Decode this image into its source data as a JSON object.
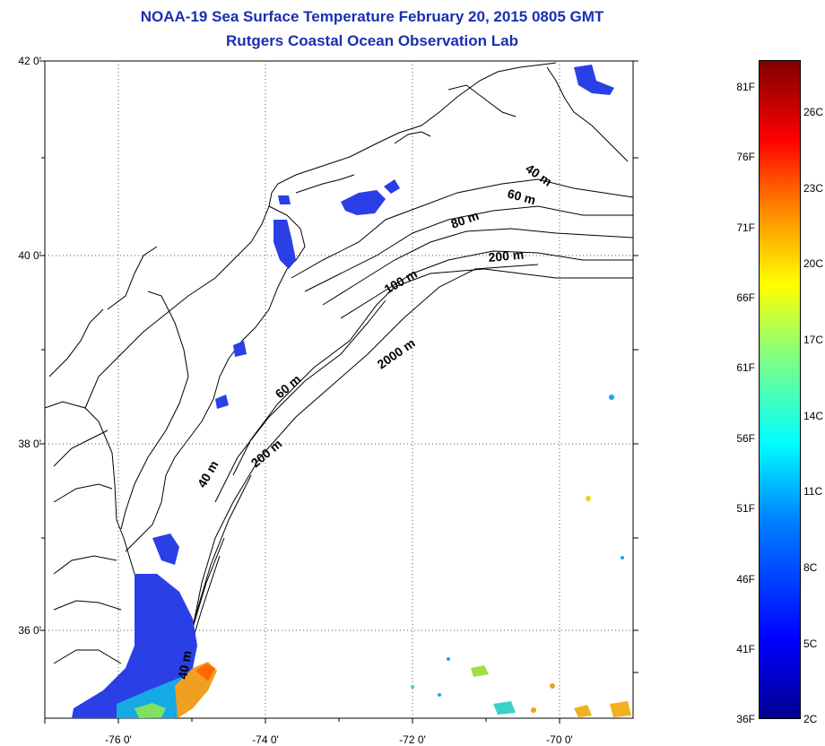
{
  "header": {
    "title": "NOAA-19 Sea Surface Temperature February 20, 2015 0805 GMT",
    "subtitle": "Rutgers Coastal Ocean Observation Lab"
  },
  "map": {
    "y_ticks": [
      "42 0'",
      "40 0'",
      "38 0'",
      "36 0'"
    ],
    "x_ticks": [
      "-76 0'",
      "-74 0'",
      "-72 0'",
      "-70 0'"
    ],
    "depth_labels": [
      "40 m",
      "60 m",
      "80 m",
      "200 m",
      "100 m",
      "2000 m",
      "60 m",
      "200 m",
      "40 m",
      "40 m"
    ]
  },
  "colorbar": {
    "fahrenheit": [
      "81F",
      "76F",
      "71F",
      "66F",
      "61F",
      "56F",
      "51F",
      "46F",
      "41F",
      "36F"
    ],
    "celsius": [
      "26C",
      "23C",
      "20C",
      "17C",
      "14C",
      "11C",
      "8C",
      "5C",
      "2C"
    ]
  }
}
